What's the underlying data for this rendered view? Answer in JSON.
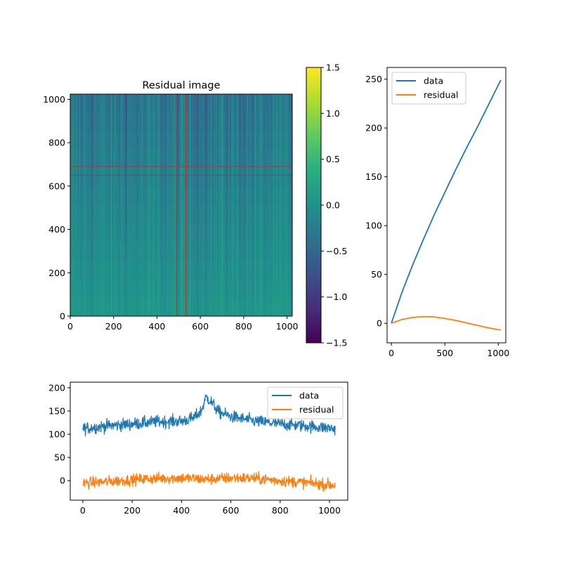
{
  "chart_data": [
    {
      "type": "heatmap",
      "title": "Residual image",
      "xlabel": "",
      "ylabel": "",
      "xlim": [
        0,
        1024
      ],
      "ylim": [
        0,
        1024
      ],
      "x_ticks": [
        0,
        200,
        400,
        600,
        800,
        1000
      ],
      "y_ticks": [
        0,
        200,
        400,
        600,
        800,
        1000
      ],
      "colormap": "viridis",
      "colorbar": {
        "range": [
          -1.5,
          1.5
        ],
        "ticks": [
          1.5,
          1.0,
          0.5,
          0.0,
          -0.5,
          -1.0,
          -1.5
        ],
        "tick_labels": [
          "1.5",
          "1.0",
          "0.5",
          "0.0",
          "−0.5",
          "−1.0",
          "−1.5"
        ]
      },
      "description_values": "column-wise residual stripes; values mostly between -0.6 and 0.5, darker toward the top",
      "cut_lines": {
        "color": "#d62728",
        "vertical_x": [
          490,
          534
        ],
        "horizontal_y": [
          650,
          690
        ]
      }
    },
    {
      "type": "line",
      "xlim": [
        -40,
        1070
      ],
      "ylim": [
        -20,
        262
      ],
      "x_ticks": [
        0,
        500,
        1000
      ],
      "y_ticks": [
        0,
        50,
        100,
        150,
        200,
        250
      ],
      "legend": "top-left",
      "series": [
        {
          "name": "data",
          "color": "#1f77b4",
          "x": [
            0,
            100,
            200,
            300,
            400,
            500,
            600,
            700,
            800,
            900,
            1000,
            1023
          ],
          "y": [
            0,
            32,
            60,
            86,
            111,
            134,
            157,
            179,
            200,
            222,
            244,
            249
          ]
        },
        {
          "name": "residual",
          "color": "#ff7f0e",
          "x": [
            0,
            100,
            200,
            300,
            400,
            500,
            600,
            700,
            800,
            900,
            1000,
            1023
          ],
          "y": [
            0,
            4,
            6,
            6.8,
            6.5,
            5,
            3,
            0.5,
            -2,
            -4.5,
            -6.5,
            -6.8
          ]
        }
      ]
    },
    {
      "type": "line",
      "xlim": [
        -51,
        1074
      ],
      "ylim": [
        -42,
        212
      ],
      "x_ticks": [
        0,
        200,
        400,
        600,
        800,
        1000
      ],
      "y_ticks": [
        0,
        50,
        100,
        150,
        200
      ],
      "legend": "top-right",
      "series": [
        {
          "name": "data",
          "color": "#1f77b4",
          "x": [
            0,
            100,
            200,
            300,
            400,
            450,
            480,
            500,
            520,
            550,
            600,
            700,
            800,
            900,
            1023
          ],
          "y": [
            112,
            118,
            122,
            127,
            128,
            135,
            150,
            180,
            170,
            148,
            138,
            128,
            122,
            118,
            112
          ],
          "noise": 12
        },
        {
          "name": "residual",
          "color": "#ff7f0e",
          "x": [
            0,
            100,
            200,
            300,
            400,
            500,
            600,
            700,
            800,
            900,
            1023
          ],
          "y": [
            -5,
            -2,
            2,
            5,
            6,
            3,
            6,
            5,
            0,
            -4,
            -10
          ],
          "noise": 11
        }
      ]
    }
  ]
}
